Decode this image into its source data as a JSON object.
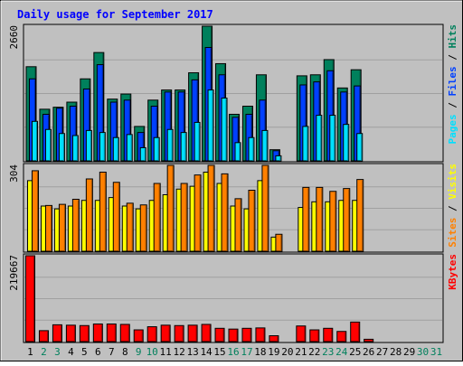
{
  "chart_data": {
    "type": "bar",
    "title": "Daily usage for September 2017",
    "categories": [
      "1",
      "2",
      "3",
      "4",
      "5",
      "6",
      "7",
      "8",
      "9",
      "10",
      "11",
      "12",
      "13",
      "14",
      "15",
      "16",
      "17",
      "18",
      "19",
      "20",
      "21",
      "22",
      "23",
      "24",
      "25",
      "26",
      "27",
      "28",
      "29",
      "30",
      "31"
    ],
    "weekend_days": [
      2,
      3,
      9,
      10,
      16,
      17,
      23,
      24,
      30,
      31
    ],
    "panels": [
      {
        "id": "hits_files_pages",
        "max_label": "2660",
        "ylim": [
          0,
          2660
        ],
        "right_labels": [
          "Pages",
          " / ",
          "Files",
          " / ",
          "Hits"
        ],
        "series": [
          {
            "name": "Hits",
            "values": [
              1860,
              1020,
              1060,
              1160,
              1620,
              2140,
              1220,
              1320,
              680,
              1200,
              1400,
              1400,
              1740,
              2660,
              1920,
              920,
              1080,
              1700,
              220,
              0,
              1680,
              1700,
              2000,
              1440,
              1800,
              0,
              0,
              0,
              0,
              0,
              0
            ]
          },
          {
            "name": "Files",
            "values": [
              1620,
              920,
              1040,
              1080,
              1420,
              1900,
              1160,
              1200,
              560,
              1080,
              1360,
              1360,
              1600,
              2240,
              1700,
              860,
              920,
              1200,
              200,
              0,
              1500,
              1560,
              1780,
              1360,
              1480,
              0,
              0,
              0,
              0,
              0,
              0
            ]
          },
          {
            "name": "Pages",
            "values": [
              780,
              620,
              540,
              500,
              600,
              560,
              460,
              520,
              260,
              460,
              620,
              560,
              760,
              1400,
              1240,
              360,
              460,
              600,
              100,
              0,
              680,
              900,
              900,
              720,
              540,
              0,
              0,
              0,
              0,
              0,
              0
            ]
          }
        ]
      },
      {
        "id": "visits_sites",
        "max_label": "304",
        "ylim": [
          0,
          304
        ],
        "right_labels": [
          "Sites",
          " / ",
          "Visits"
        ],
        "series": [
          {
            "name": "Visits",
            "values": [
              250,
              160,
              150,
              160,
              180,
              180,
              190,
              160,
              150,
              180,
              200,
              220,
              230,
              280,
              240,
              160,
              150,
              250,
              50,
              0,
              155,
              175,
              175,
              180,
              180,
              0,
              0,
              0,
              0,
              0,
              0
            ]
          },
          {
            "name": "Sites",
            "values": [
              285,
              162,
              166,
              184,
              256,
              280,
              244,
              170,
              164,
              240,
              304,
              240,
              270,
              304,
              274,
              186,
              216,
              304,
              60,
              0,
              226,
              226,
              212,
              222,
              254,
              0,
              0,
              0,
              0,
              0,
              0
            ]
          }
        ]
      },
      {
        "id": "kbytes",
        "max_label": "219667",
        "ylim": [
          0,
          219667
        ],
        "right_labels": [
          "KBytes"
        ],
        "series": [
          {
            "name": "KBytes",
            "values": [
              219667,
              28000,
              43000,
              42000,
              41000,
              45000,
              45000,
              44000,
              30000,
              38000,
              42000,
              41000,
              42000,
              44000,
              34000,
              32000,
              34000,
              35000,
              15000,
              0,
              40000,
              30000,
              34000,
              26000,
              50000,
              6000,
              0,
              0,
              0,
              0,
              0
            ]
          }
        ]
      }
    ],
    "grid": true,
    "colors": {
      "background": "#c0c0c0",
      "hits": "#00805c",
      "files": "#0040ff",
      "pages": "#00e0ff",
      "visits": "#ffff00",
      "sites": "#ff8000",
      "kbytes": "#ff0000",
      "title": "#0000ff",
      "weekday": "#000000",
      "weekend": "#00805c"
    }
  }
}
